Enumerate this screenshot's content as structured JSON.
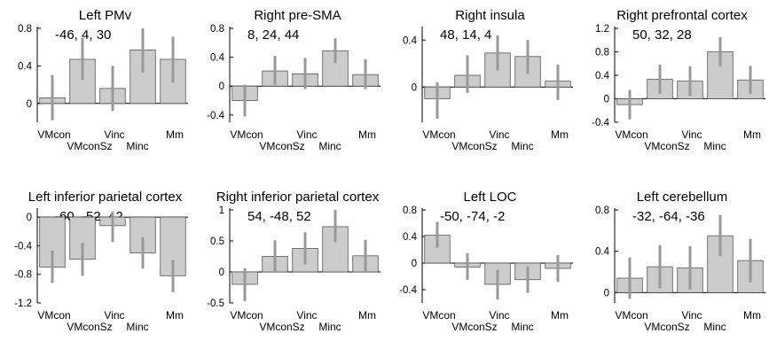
{
  "chart_data": [
    {
      "type": "bar",
      "title": "Left PMv",
      "annotation": "-46, 4, 30",
      "categories": [
        "VMcon",
        "VMconSz",
        "Vinc",
        "Minc",
        "Mm"
      ],
      "values": [
        0.06,
        0.47,
        0.16,
        0.57,
        0.47
      ],
      "error_low": [
        -0.18,
        0.25,
        -0.08,
        0.33,
        0.22
      ],
      "error_high": [
        0.3,
        0.7,
        0.4,
        0.8,
        0.71
      ],
      "ylim": [
        -0.2,
        0.8
      ],
      "yticks": [
        0,
        0.4,
        0.8
      ],
      "ytick_labels": [
        "0",
        "0.4",
        "0.8"
      ],
      "grid": false,
      "bar_color": "#cccccc",
      "error_color": "#999999"
    },
    {
      "type": "bar",
      "title": "Right pre-SMA",
      "annotation": "8, 24, 44",
      "categories": [
        "VMcon",
        "VMconSz",
        "Vinc",
        "Minc",
        "Mm"
      ],
      "values": [
        -0.2,
        0.21,
        0.17,
        0.49,
        0.16
      ],
      "error_low": [
        -0.42,
        0.02,
        -0.04,
        0.32,
        -0.04
      ],
      "error_high": [
        0.02,
        0.42,
        0.39,
        0.66,
        0.37
      ],
      "ylim": [
        -0.5,
        0.8
      ],
      "yticks": [
        -0.4,
        0,
        0.4,
        0.8
      ],
      "ytick_labels": [
        "-0.4",
        "0",
        "0.4",
        "0.8"
      ],
      "grid": false,
      "bar_color": "#cccccc",
      "error_color": "#999999"
    },
    {
      "type": "bar",
      "title": "Right insula",
      "annotation": "48, 14, 4",
      "categories": [
        "VMcon",
        "VMconSz",
        "Vinc",
        "Minc",
        "Mm"
      ],
      "values": [
        -0.1,
        0.1,
        0.29,
        0.26,
        0.05
      ],
      "error_low": [
        -0.27,
        -0.05,
        0.14,
        0.11,
        -0.11
      ],
      "error_high": [
        0.04,
        0.27,
        0.44,
        0.4,
        0.19
      ],
      "ylim": [
        -0.3,
        0.5
      ],
      "yticks": [
        0,
        0.4
      ],
      "ytick_labels": [
        "0",
        "0.4"
      ],
      "grid": false,
      "bar_color": "#cccccc",
      "error_color": "#999999"
    },
    {
      "type": "bar",
      "title": "Right prefrontal cortex",
      "annotation": "50, 32, 28",
      "categories": [
        "VMcon",
        "VMconSz",
        "Vinc",
        "Minc",
        "Mm"
      ],
      "values": [
        -0.1,
        0.33,
        0.3,
        0.8,
        0.32
      ],
      "error_low": [
        -0.35,
        0.08,
        0.05,
        0.55,
        0.08
      ],
      "error_high": [
        0.15,
        0.58,
        0.55,
        1.05,
        0.56
      ],
      "ylim": [
        -0.4,
        1.2
      ],
      "yticks": [
        -0.4,
        0,
        0.4,
        0.8,
        1.2
      ],
      "ytick_labels": [
        "-0.4",
        "0",
        "0.4",
        "0.8",
        "1.2"
      ],
      "grid": false,
      "bar_color": "#cccccc",
      "error_color": "#999999"
    },
    {
      "type": "bar",
      "title": "Left inferior parietal cortex",
      "annotation": "-60, -52, 42",
      "categories": [
        "VMcon",
        "VMconSz",
        "Vinc",
        "Minc",
        "Mm"
      ],
      "values": [
        -0.7,
        -0.59,
        -0.12,
        -0.5,
        -0.82
      ],
      "error_low": [
        -0.92,
        -0.82,
        -0.35,
        -0.72,
        -1.05
      ],
      "error_high": [
        -0.47,
        -0.36,
        0.08,
        -0.28,
        -0.6
      ],
      "ylim": [
        -1.2,
        0.1
      ],
      "yticks": [
        -1.2,
        -0.8,
        -0.4,
        0
      ],
      "ytick_labels": [
        "-1.2",
        "-0.8",
        "-0.4",
        "0"
      ],
      "grid": false,
      "bar_color": "#cccccc",
      "error_color": "#999999"
    },
    {
      "type": "bar",
      "title": "Right inferior parietal cortex",
      "annotation": "54, -48, 52",
      "categories": [
        "VMcon",
        "VMconSz",
        "Vinc",
        "Minc",
        "Mm"
      ],
      "values": [
        -0.2,
        0.25,
        0.38,
        0.73,
        0.26
      ],
      "error_low": [
        -0.47,
        0.0,
        0.12,
        0.48,
        0.0
      ],
      "error_high": [
        0.06,
        0.51,
        0.64,
        1.0,
        0.52
      ],
      "ylim": [
        -0.5,
        1.0
      ],
      "yticks": [
        -0.5,
        0,
        0.5,
        1
      ],
      "ytick_labels": [
        "-0.5",
        "0",
        "0.5",
        "1"
      ],
      "grid": false,
      "bar_color": "#cccccc",
      "error_color": "#999999"
    },
    {
      "type": "bar",
      "title": "Left LOC",
      "annotation": "-50, -74, -2",
      "categories": [
        "VMcon",
        "VMconSz",
        "Vinc",
        "Minc",
        "Mm"
      ],
      "values": [
        0.42,
        -0.06,
        -0.32,
        -0.25,
        -0.08
      ],
      "error_low": [
        0.23,
        -0.25,
        -0.55,
        -0.45,
        -0.28
      ],
      "error_high": [
        0.62,
        0.15,
        -0.1,
        -0.05,
        0.12
      ],
      "ylim": [
        -0.6,
        0.8
      ],
      "yticks": [
        -0.4,
        0,
        0.4,
        0.8
      ],
      "ytick_labels": [
        "-0.4",
        "0",
        "0.4",
        "0.8"
      ],
      "grid": false,
      "bar_color": "#cccccc",
      "error_color": "#999999"
    },
    {
      "type": "bar",
      "title": "Left cerebellum",
      "annotation": "-32, -64, -36",
      "categories": [
        "VMcon",
        "VMconSz",
        "Vinc",
        "Minc",
        "Mm"
      ],
      "values": [
        0.14,
        0.25,
        0.24,
        0.55,
        0.31
      ],
      "error_low": [
        -0.06,
        0.04,
        0.03,
        0.35,
        0.1
      ],
      "error_high": [
        0.34,
        0.46,
        0.45,
        0.75,
        0.52
      ],
      "ylim": [
        -0.1,
        0.8
      ],
      "yticks": [
        0,
        0.4,
        0.8
      ],
      "ytick_labels": [
        "0",
        "0.4",
        "0.8"
      ],
      "grid": false,
      "bar_color": "#cccccc",
      "error_color": "#999999"
    }
  ]
}
